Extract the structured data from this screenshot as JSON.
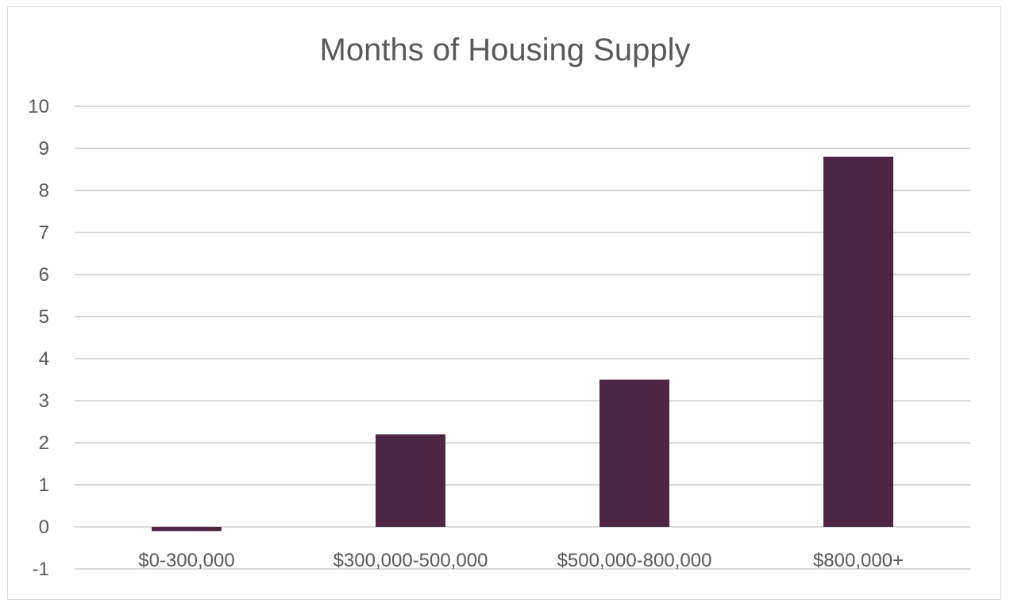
{
  "chart_data": {
    "type": "bar",
    "title": "Months of Housing Supply",
    "xlabel": "",
    "ylabel": "",
    "categories": [
      "$0-300,000",
      "$300,000-500,000",
      "$500,000-800,000",
      "$800,000+"
    ],
    "values": [
      -0.1,
      2.2,
      3.5,
      8.8
    ],
    "ylim": [
      -1,
      10
    ],
    "yticks": [
      -1,
      0,
      1,
      2,
      3,
      4,
      5,
      6,
      7,
      8,
      9,
      10
    ],
    "grid": true,
    "legend": "none",
    "colors": {
      "bar": "#4d2641",
      "grid": "#d9d9d9",
      "text": "#595959"
    }
  }
}
